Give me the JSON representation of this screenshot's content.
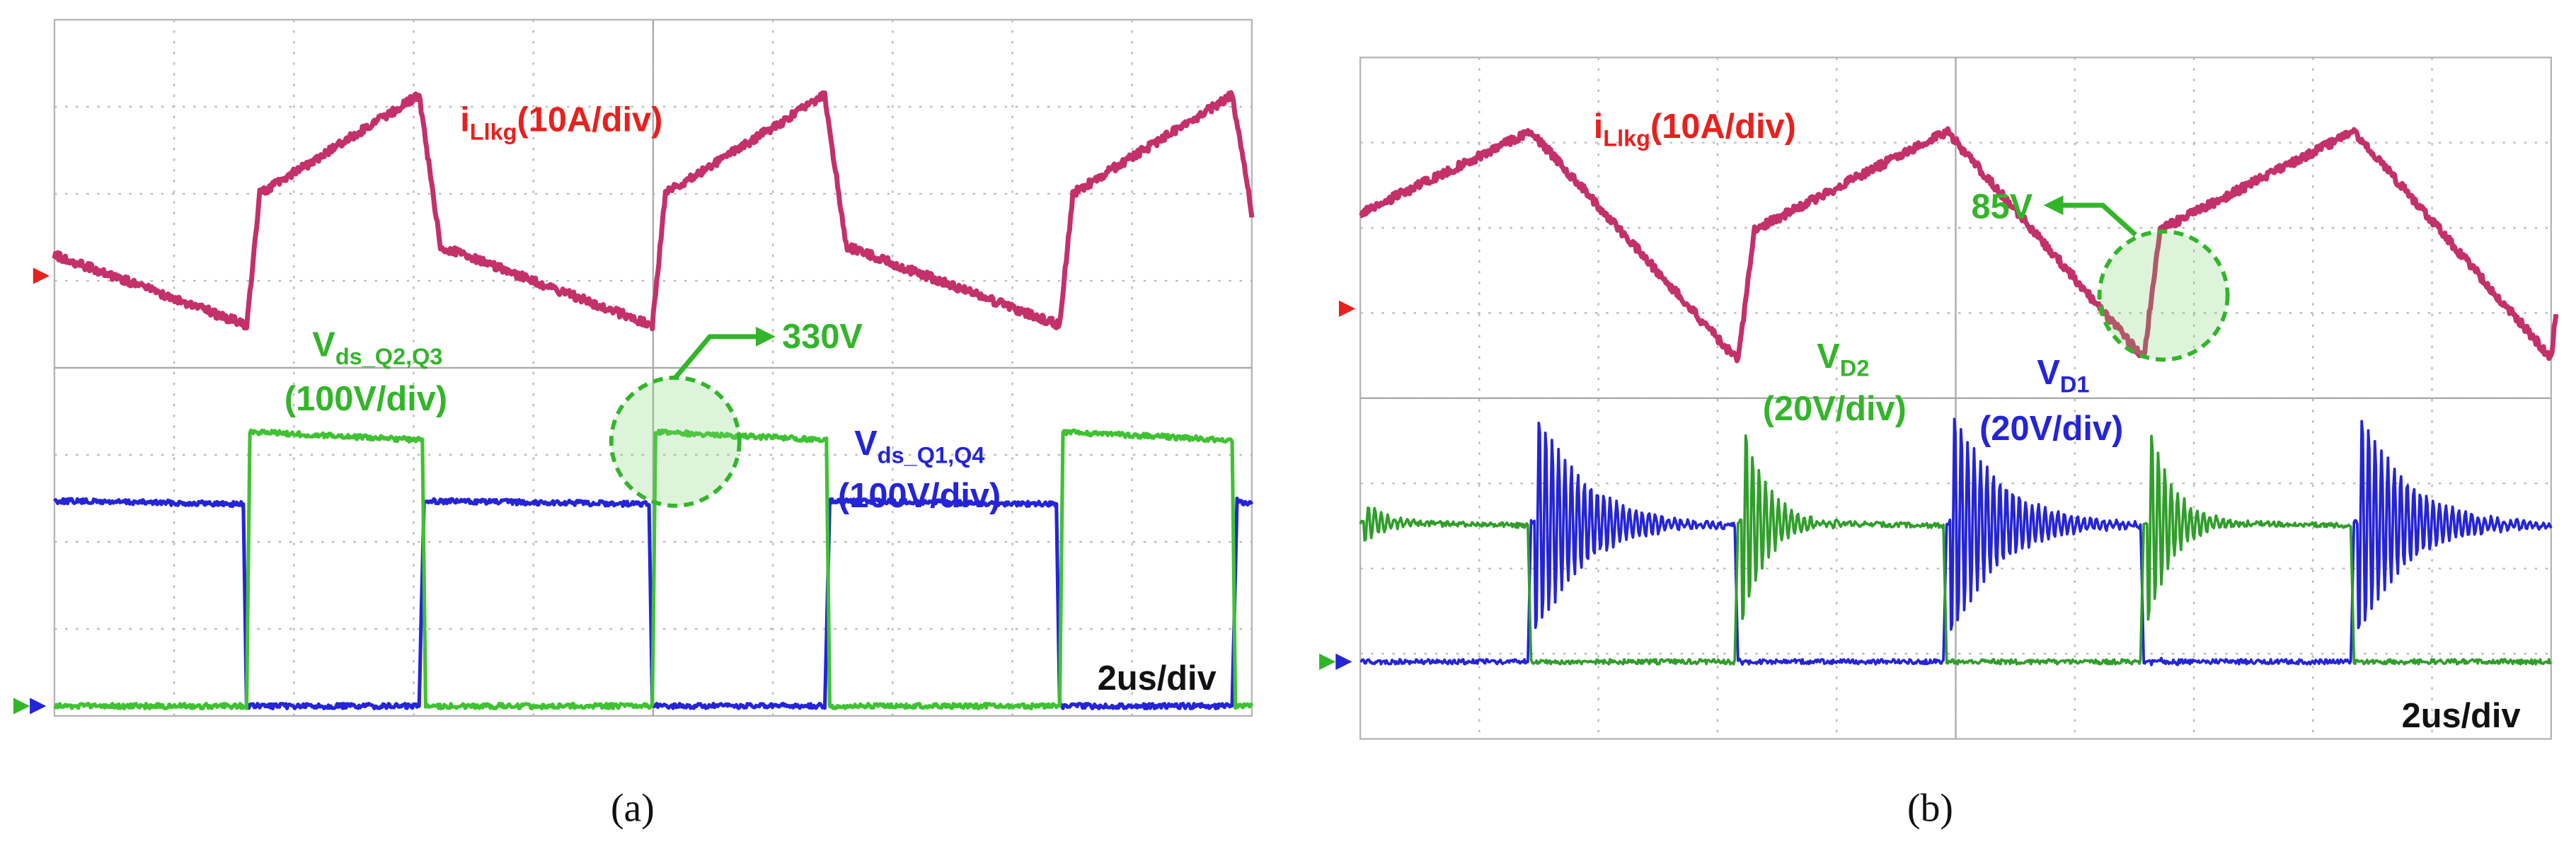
{
  "panels": [
    {
      "caption": "(a)",
      "labels": [
        {
          "text": "i",
          "sub": "Llkg",
          "suffix": "(10A/div)"
        },
        {
          "text": "V",
          "sub": "ds_Q2,Q3"
        },
        {
          "text": "(100V/div)"
        },
        {
          "text": "330V"
        },
        {
          "text": "V",
          "sub": "ds_Q1,Q4"
        },
        {
          "text": "(100V/div)"
        },
        {
          "text": "2us/div"
        }
      ]
    },
    {
      "caption": "(b)",
      "labels": [
        {
          "text": "i",
          "sub": "Llkg",
          "suffix": "(10A/div)"
        },
        {
          "text": "85V"
        },
        {
          "text": "V",
          "sub": "D2"
        },
        {
          "text": "(20V/div)"
        },
        {
          "text": "V",
          "sub": "D1"
        },
        {
          "text": "(20V/div)"
        },
        {
          "text": "2us/div"
        }
      ]
    }
  ]
}
